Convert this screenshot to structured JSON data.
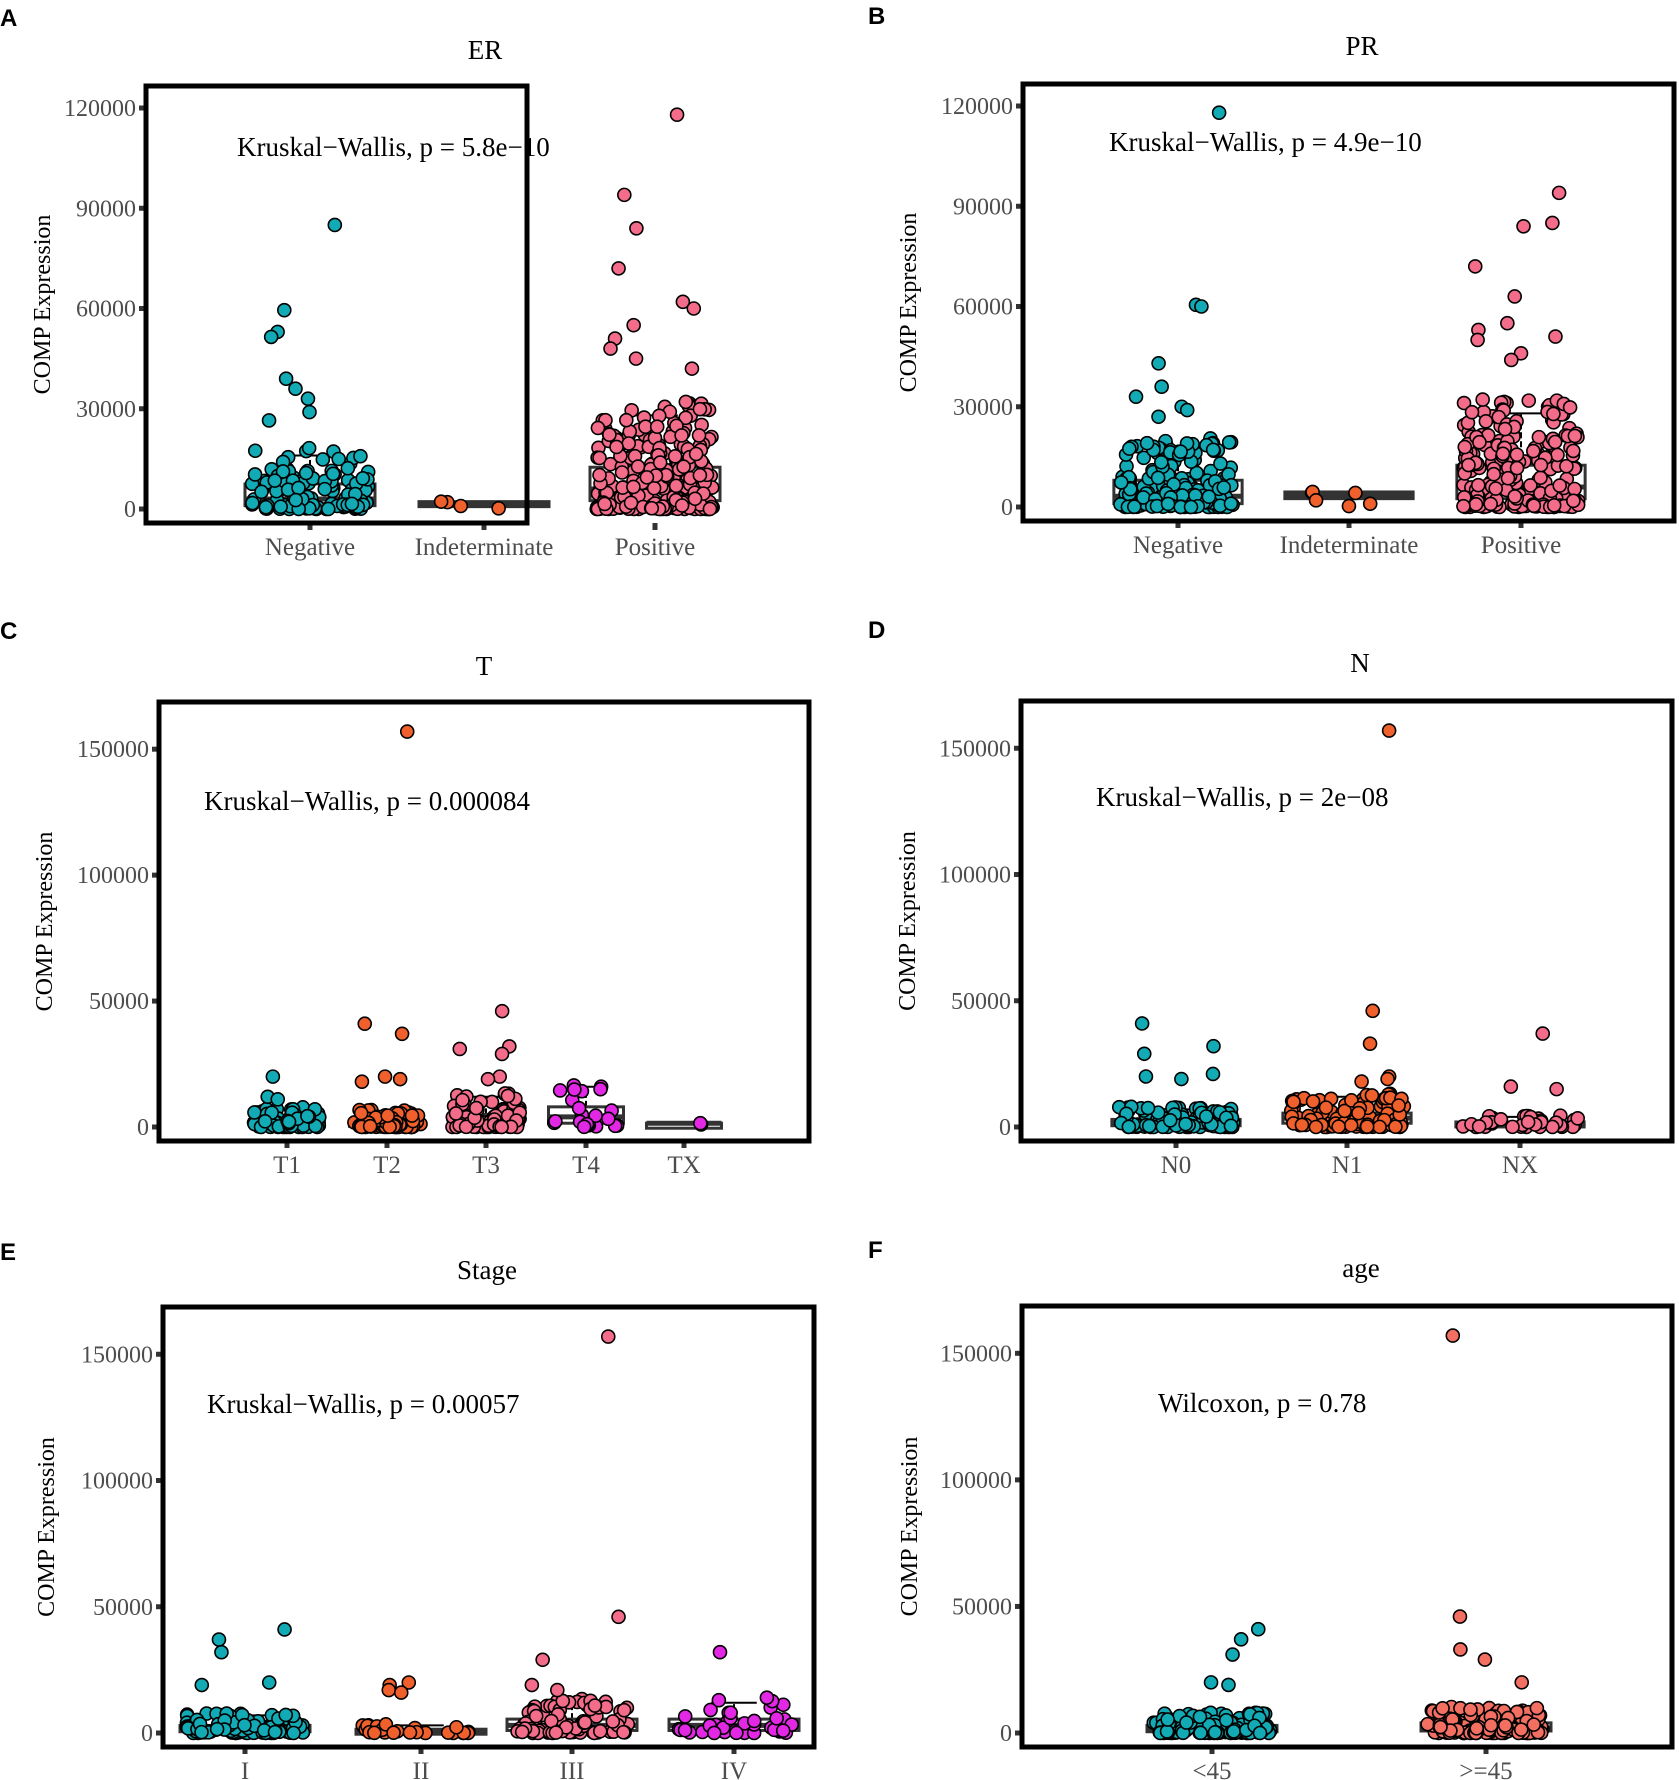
{
  "colors": {
    "teal": "#12aab4",
    "orange": "#f0602d",
    "pink": "#f36d8a",
    "magenta": "#e228e4",
    "salmon": "#f26f62"
  },
  "chart_data": [
    {
      "type": "box+jitter",
      "label": "A",
      "title": "ER",
      "ylabel": "COMP Expression",
      "xlabel": "",
      "ylim": [
        0,
        120000
      ],
      "ticks": [
        0,
        30000,
        60000,
        90000,
        120000
      ],
      "tick_labels": [
        "0",
        "30000",
        "60000",
        "90000",
        "120000"
      ],
      "stat": "Kruskal−Wallis, p = 5.8e−10",
      "groups": [
        {
          "name": "Negative",
          "color": "#12aab4",
          "n": 130,
          "box": {
            "lower": 1000,
            "median": 3000,
            "upper": 7500,
            "whisker_hi": 16000
          },
          "outliers": [
            85000,
            59500,
            53000,
            51500,
            39000,
            36000,
            33000,
            29000,
            26500
          ]
        },
        {
          "name": "Indeterminate",
          "color": "#f0602d",
          "n": 2,
          "box": {
            "lower": 1000,
            "median": 1600,
            "upper": 2200,
            "whisker_hi": 2200
          },
          "outliers": [
            2200,
            900
          ]
        },
        {
          "name": "Positive",
          "color": "#f36d8a",
          "n": 260,
          "box": {
            "lower": 2500,
            "median": 6000,
            "upper": 12500,
            "whisker_hi": 28000
          },
          "outliers": [
            118000,
            94000,
            84000,
            72000,
            62000,
            60000,
            55000,
            51000,
            48000,
            45000,
            42000
          ]
        }
      ]
    },
    {
      "type": "box+jitter",
      "label": "B",
      "title": "PR",
      "ylabel": "COMP Expression",
      "xlabel": "",
      "ylim": [
        0,
        120000
      ],
      "ticks": [
        0,
        30000,
        60000,
        90000,
        120000
      ],
      "tick_labels": [
        "0",
        "30000",
        "60000",
        "90000",
        "120000"
      ],
      "stat": "Kruskal−Wallis, p = 4.9e−10",
      "groups": [
        {
          "name": "Negative",
          "color": "#12aab4",
          "n": 180,
          "box": {
            "lower": 1000,
            "median": 3200,
            "upper": 8000,
            "whisker_hi": 18000
          },
          "outliers": [
            118000,
            60500,
            60000,
            43000,
            36000,
            33000,
            30000,
            29000,
            27000
          ]
        },
        {
          "name": "Indeterminate",
          "color": "#f0602d",
          "n": 3,
          "box": {
            "lower": 2500,
            "median": 3500,
            "upper": 4500,
            "whisker_hi": 4500
          },
          "outliers": [
            4500,
            2000,
            4200
          ]
        },
        {
          "name": "Positive",
          "color": "#f36d8a",
          "n": 240,
          "box": {
            "lower": 2500,
            "median": 6000,
            "upper": 12500,
            "whisker_hi": 28000
          },
          "outliers": [
            94000,
            85000,
            84000,
            72000,
            63000,
            55000,
            53000,
            51000,
            50000,
            46000,
            44000
          ]
        }
      ]
    },
    {
      "type": "box+jitter",
      "label": "C",
      "title": "T",
      "ylabel": "COMP Expression",
      "xlabel": "",
      "ylim": [
        0,
        160000
      ],
      "ticks": [
        0,
        50000,
        100000,
        150000
      ],
      "tick_labels": [
        "0",
        "50000",
        "100000",
        "150000"
      ],
      "stat": "Kruskal−Wallis, p = 0.000084",
      "groups": [
        {
          "name": "T1",
          "color": "#12aab4",
          "n": 80,
          "box": {
            "lower": 500,
            "median": 1500,
            "upper": 3000,
            "whisker_hi": 7000
          },
          "outliers": [
            20000,
            12000,
            11000
          ]
        },
        {
          "name": "T2",
          "color": "#f0602d",
          "n": 90,
          "box": {
            "lower": 300,
            "median": 1000,
            "upper": 2500,
            "whisker_hi": 6000
          },
          "outliers": [
            157000,
            41000,
            37000,
            20000,
            19000,
            18000
          ]
        },
        {
          "name": "T3",
          "color": "#f36d8a",
          "n": 90,
          "box": {
            "lower": 800,
            "median": 2500,
            "upper": 5000,
            "whisker_hi": 12000
          },
          "outliers": [
            46000,
            32000,
            31000,
            29000,
            20000,
            19000
          ]
        },
        {
          "name": "T4",
          "color": "#e228e4",
          "n": 20,
          "box": {
            "lower": 1500,
            "median": 4000,
            "upper": 8000,
            "whisker_hi": 16000
          },
          "outliers": [
            16000,
            15000
          ]
        },
        {
          "name": "TX",
          "color": "#e228e4",
          "n": 1,
          "box": {
            "lower": 1500,
            "median": 1500,
            "upper": 1500,
            "whisker_hi": 1500
          },
          "outliers": [
            1500
          ]
        }
      ]
    },
    {
      "type": "box+jitter",
      "label": "D",
      "title": "N",
      "ylabel": "COMP Expression",
      "xlabel": "",
      "ylim": [
        0,
        160000
      ],
      "ticks": [
        0,
        50000,
        100000,
        150000
      ],
      "tick_labels": [
        "0",
        "50000",
        "100000",
        "150000"
      ],
      "stat": "Kruskal−Wallis, p = 2e−08",
      "groups": [
        {
          "name": "N0",
          "color": "#12aab4",
          "n": 110,
          "box": {
            "lower": 500,
            "median": 1500,
            "upper": 3000,
            "whisker_hi": 7000
          },
          "outliers": [
            41000,
            32000,
            29000,
            21000,
            20000,
            19000
          ]
        },
        {
          "name": "N1",
          "color": "#f0602d",
          "n": 120,
          "box": {
            "lower": 1500,
            "median": 3500,
            "upper": 5500,
            "whisker_hi": 12000
          },
          "outliers": [
            157000,
            46000,
            33000,
            20000,
            19000,
            18000
          ]
        },
        {
          "name": "NX",
          "color": "#f36d8a",
          "n": 40,
          "box": {
            "lower": 300,
            "median": 800,
            "upper": 2000,
            "whisker_hi": 4000
          },
          "outliers": [
            37000,
            16000,
            15000
          ]
        }
      ]
    },
    {
      "type": "box+jitter",
      "label": "E",
      "title": "Stage",
      "ylabel": "COMP Expression",
      "xlabel": "",
      "ylim": [
        0,
        160000
      ],
      "ticks": [
        0,
        50000,
        100000,
        150000
      ],
      "tick_labels": [
        "0",
        "50000",
        "100000",
        "150000"
      ],
      "stat": "Kruskal−Wallis, p = 0.00057",
      "groups": [
        {
          "name": "I",
          "color": "#12aab4",
          "n": 110,
          "box": {
            "lower": 500,
            "median": 1500,
            "upper": 3000,
            "whisker_hi": 7000
          },
          "outliers": [
            41000,
            37000,
            32000,
            20000,
            19000
          ]
        },
        {
          "name": "II",
          "color": "#f0602d",
          "n": 25,
          "box": {
            "lower": 200,
            "median": 600,
            "upper": 1500,
            "whisker_hi": 3000
          },
          "outliers": [
            20000,
            19000,
            17000,
            16000
          ]
        },
        {
          "name": "III",
          "color": "#f36d8a",
          "n": 80,
          "box": {
            "lower": 1000,
            "median": 3000,
            "upper": 5500,
            "whisker_hi": 12000
          },
          "outliers": [
            157000,
            46000,
            29000,
            19000,
            17000
          ]
        },
        {
          "name": "IV",
          "color": "#e228e4",
          "n": 35,
          "box": {
            "lower": 1000,
            "median": 3000,
            "upper": 5500,
            "whisker_hi": 12000
          },
          "outliers": [
            32000,
            14000,
            13000
          ]
        }
      ]
    },
    {
      "type": "box+jitter",
      "label": "F",
      "title": "age",
      "ylabel": "COMP Expression",
      "xlabel": "",
      "ylim": [
        0,
        160000
      ],
      "ticks": [
        0,
        50000,
        100000,
        150000
      ],
      "tick_labels": [
        "0",
        "50000",
        "100000",
        "150000"
      ],
      "stat": "Wilcoxon, p = 0.78",
      "groups": [
        {
          "name": "<45",
          "color": "#12aab4",
          "n": 120,
          "box": {
            "lower": 500,
            "median": 1500,
            "upper": 3000,
            "whisker_hi": 7000
          },
          "outliers": [
            41000,
            37000,
            31000,
            20000,
            19000
          ]
        },
        {
          "name": ">=45",
          "color": "#f26f62",
          "n": 140,
          "box": {
            "lower": 800,
            "median": 2000,
            "upper": 4000,
            "whisker_hi": 9000
          },
          "outliers": [
            157000,
            46000,
            33000,
            29000,
            20000
          ]
        }
      ]
    }
  ]
}
